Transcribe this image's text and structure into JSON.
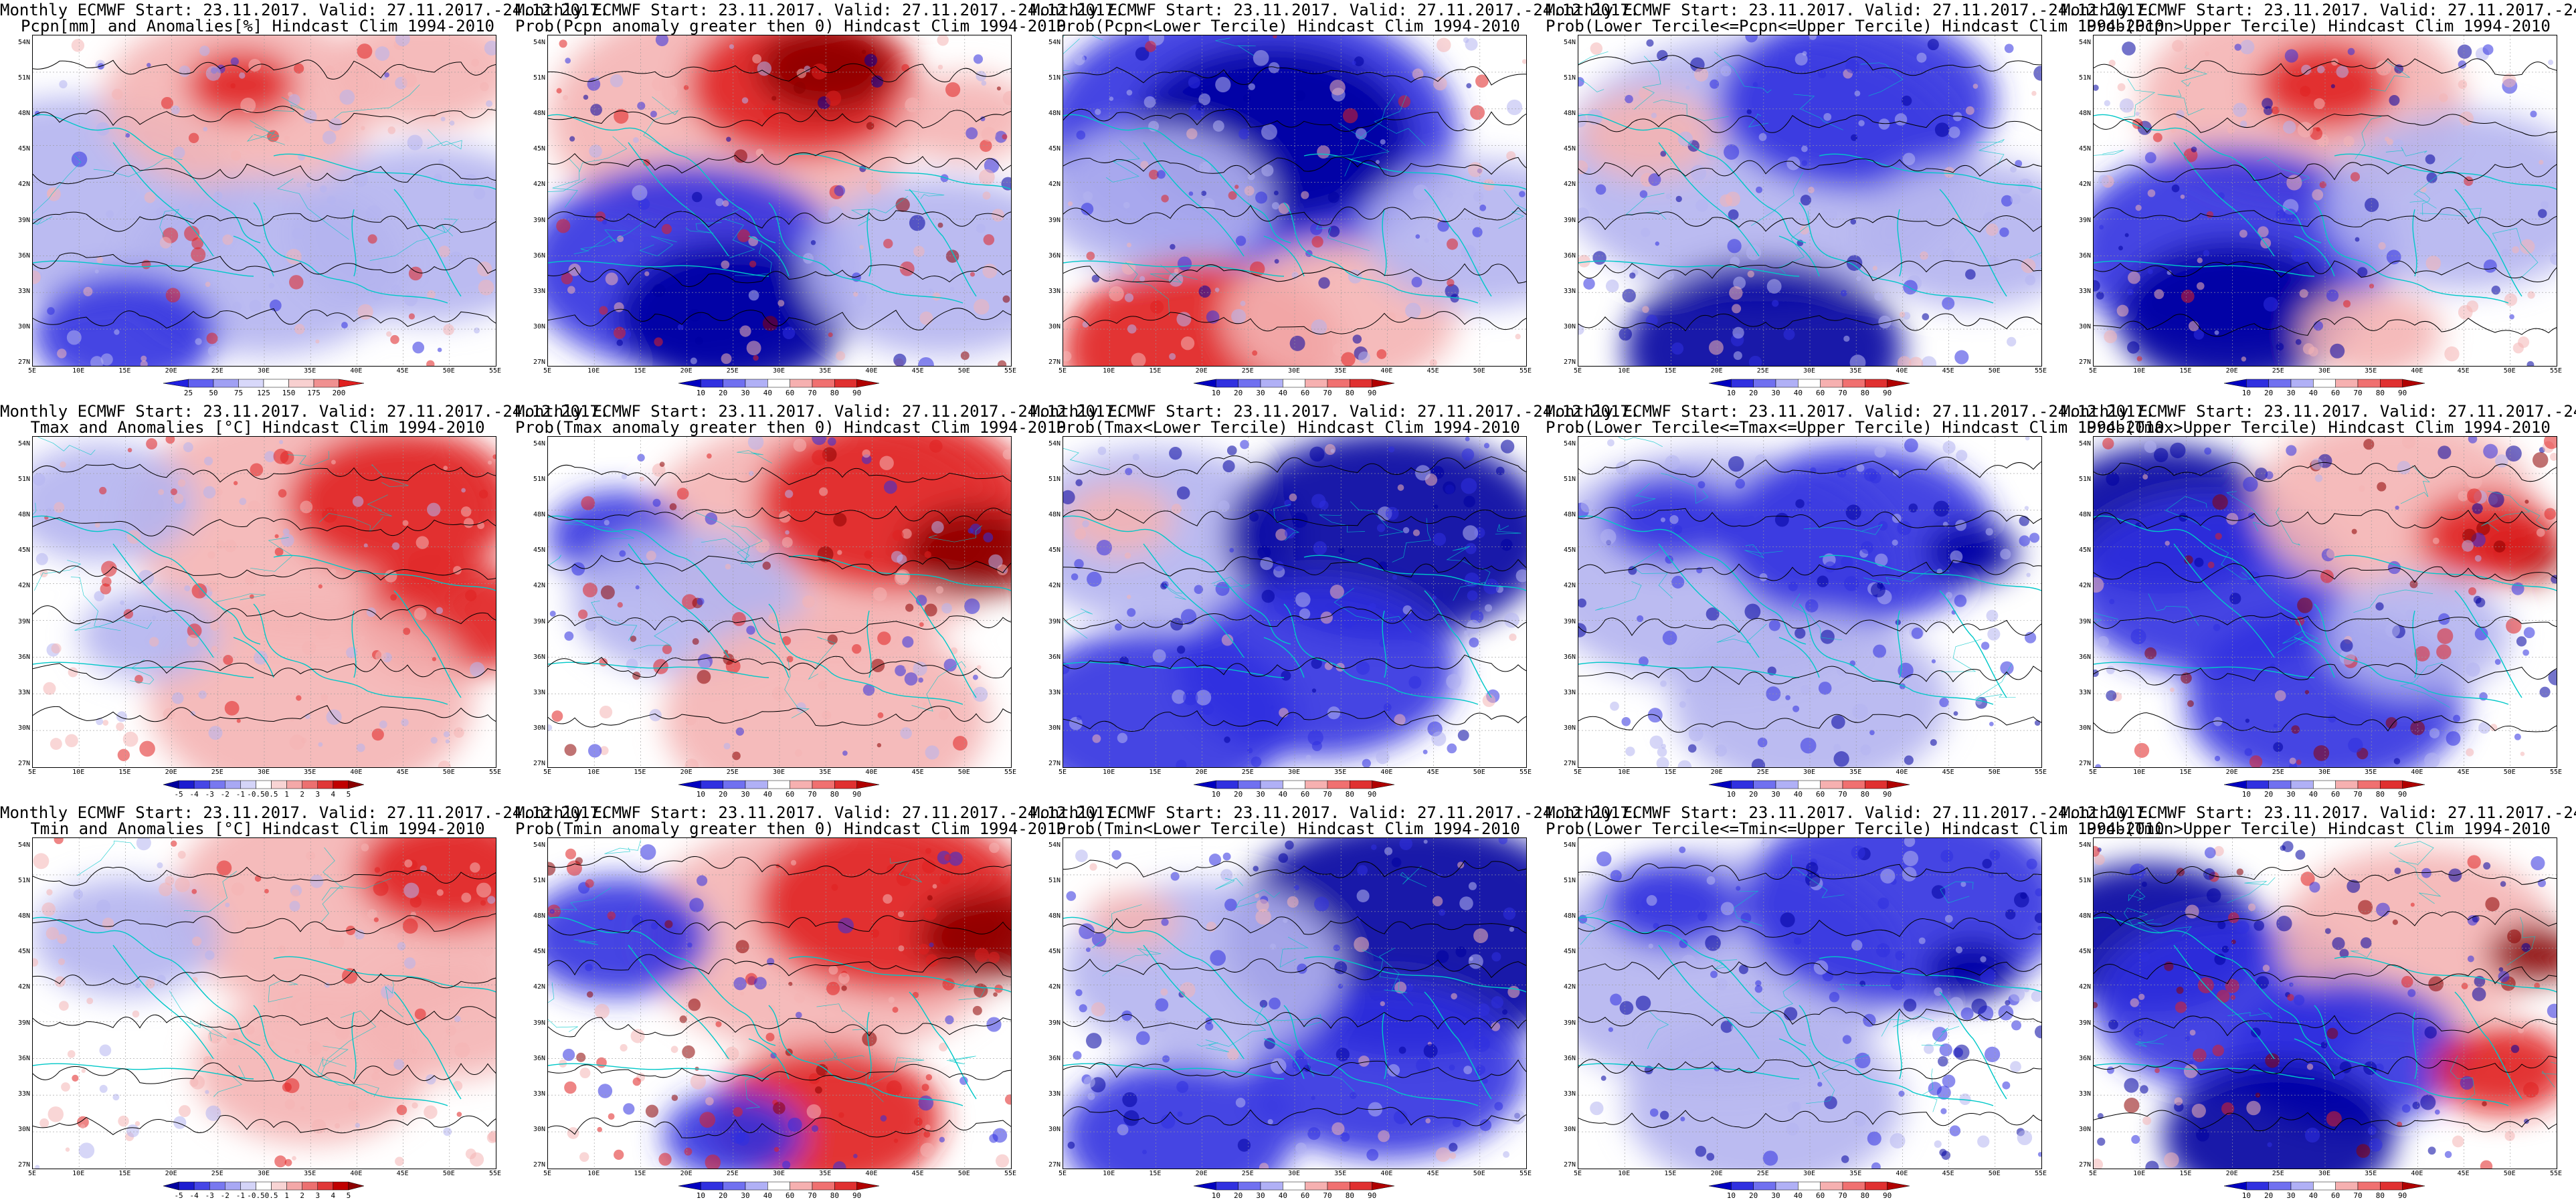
{
  "figure": {
    "header": "Monthly ECMWF Start: 23.11.2017. Valid: 27.11.2017.-24.12.2017.",
    "lat_labels": [
      "54N",
      "51N",
      "48N",
      "45N",
      "42N",
      "39N",
      "36N",
      "33N",
      "30N",
      "27N"
    ],
    "lon_labels": [
      "5E",
      "10E",
      "15E",
      "20E",
      "25E",
      "30E",
      "35E",
      "40E",
      "45E",
      "50E",
      "55E"
    ],
    "colors": {
      "deep_blue": "#0000a0",
      "blue": "#3030e0",
      "light_blue": "#b4b4f0",
      "white": "#ffffff",
      "light_red": "#f4b4b4",
      "red": "#e02020",
      "dark_red": "#8c0000",
      "coast": "#00c8c8",
      "contour": "#000000"
    }
  },
  "panels": [
    {
      "row": 0,
      "col": 0,
      "title": "Pcpn[mm] and Anomalies[%] Hindcast Clim 1994-2010",
      "field": "pcpn_anom",
      "colorbar": [
        "25",
        "50",
        "75",
        "125",
        "150",
        "175",
        "200"
      ]
    },
    {
      "row": 0,
      "col": 1,
      "title": "Prob(Pcpn anomaly greater then 0) Hindcast Clim 1994-2010",
      "field": "pcpn_pos",
      "colorbar": [
        "10",
        "20",
        "30",
        "40",
        "60",
        "70",
        "80",
        "90"
      ]
    },
    {
      "row": 0,
      "col": 2,
      "title": "Prob(Pcpn<Lower Tercile) Hindcast Clim 1994-2010",
      "field": "pcpn_low",
      "colorbar": [
        "10",
        "20",
        "30",
        "40",
        "60",
        "70",
        "80",
        "90"
      ]
    },
    {
      "row": 0,
      "col": 3,
      "title": "Prob(Lower Tercile<=Pcpn<=Upper Tercile) Hindcast Clim 1994-2010",
      "field": "pcpn_mid",
      "colorbar": [
        "10",
        "20",
        "30",
        "40",
        "60",
        "70",
        "80",
        "90"
      ]
    },
    {
      "row": 0,
      "col": 4,
      "title": "Prob(Pcpn>Upper Tercile) Hindcast Clim 1994-2010",
      "field": "pcpn_up",
      "colorbar": [
        "10",
        "20",
        "30",
        "40",
        "60",
        "70",
        "80",
        "90"
      ]
    },
    {
      "row": 1,
      "col": 0,
      "title": "Tmax and Anomalies [°C] Hindcast Clim 1994-2010",
      "field": "tmax_anom",
      "colorbar": [
        "-5",
        "-4",
        "-3",
        "-2",
        "-1",
        "-0.5",
        "0.5",
        "1",
        "2",
        "3",
        "4",
        "5"
      ]
    },
    {
      "row": 1,
      "col": 1,
      "title": "Prob(Tmax anomaly greater then 0) Hindcast Clim 1994-2010",
      "field": "tmax_pos",
      "colorbar": [
        "10",
        "20",
        "30",
        "40",
        "60",
        "70",
        "80",
        "90"
      ]
    },
    {
      "row": 1,
      "col": 2,
      "title": "Prob(Tmax<Lower Tercile) Hindcast Clim 1994-2010",
      "field": "tmax_low",
      "colorbar": [
        "10",
        "20",
        "30",
        "40",
        "60",
        "70",
        "80",
        "90"
      ]
    },
    {
      "row": 1,
      "col": 3,
      "title": "Prob(Lower Tercile<=Tmax<=Upper Tercile) Hindcast Clim 1994-2010",
      "field": "tmax_mid",
      "colorbar": [
        "10",
        "20",
        "30",
        "40",
        "60",
        "70",
        "80",
        "90"
      ]
    },
    {
      "row": 1,
      "col": 4,
      "title": "Prob(Tmax>Upper Tercile) Hindcast Clim 1994-2010",
      "field": "tmax_up",
      "colorbar": [
        "10",
        "20",
        "30",
        "40",
        "60",
        "70",
        "80",
        "90"
      ]
    },
    {
      "row": 2,
      "col": 0,
      "title": "Tmin and Anomalies [°C] Hindcast Clim 1994-2010",
      "field": "tmin_anom",
      "colorbar": [
        "-5",
        "-4",
        "-3",
        "-2",
        "-1",
        "-0.5",
        "0.5",
        "1",
        "2",
        "3",
        "4",
        "5"
      ]
    },
    {
      "row": 2,
      "col": 1,
      "title": "Prob(Tmin anomaly greater then 0) Hindcast Clim 1994-2010",
      "field": "tmin_pos",
      "colorbar": [
        "10",
        "20",
        "30",
        "40",
        "60",
        "70",
        "80",
        "90"
      ]
    },
    {
      "row": 2,
      "col": 2,
      "title": "Prob(Tmin<Lower Tercile) Hindcast Clim 1994-2010",
      "field": "tmin_low",
      "colorbar": [
        "10",
        "20",
        "30",
        "40",
        "60",
        "70",
        "80",
        "90"
      ]
    },
    {
      "row": 2,
      "col": 3,
      "title": "Prob(Lower Tercile<=Tmin<=Upper Tercile) Hindcast Clim 1994-2010",
      "field": "tmin_mid",
      "colorbar": [
        "10",
        "20",
        "30",
        "40",
        "60",
        "70",
        "80",
        "90"
      ]
    },
    {
      "row": 2,
      "col": 4,
      "title": "Prob(Tmin>Upper Tercile) Hindcast Clim 1994-2010",
      "field": "tmin_up",
      "colorbar": [
        "10",
        "20",
        "30",
        "40",
        "60",
        "70",
        "80",
        "90"
      ]
    }
  ]
}
